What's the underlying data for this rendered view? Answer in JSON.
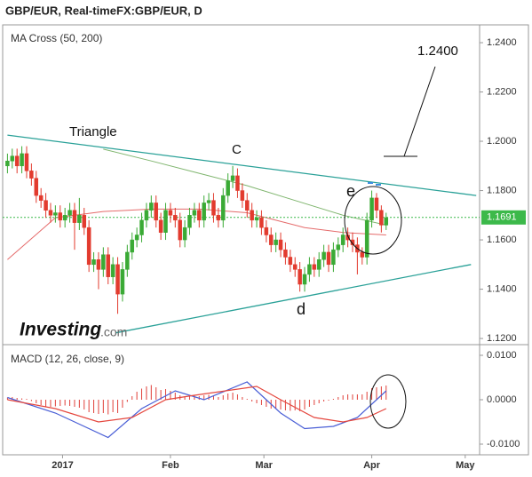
{
  "title": "GBP/EUR, Real-timeFX:GBP/EUR, D",
  "watermark": {
    "brand": "Investing",
    "suffix": ".com"
  },
  "annotations": [
    "Triangle",
    "C",
    "d",
    "e",
    "1.2400"
  ],
  "chart_data": [
    {
      "type": "candlestick",
      "panel_label": "MA Cross (50, 200)",
      "open": [
        1.19,
        1.192,
        1.194,
        1.19,
        1.195,
        1.188,
        1.185,
        1.178,
        1.176,
        1.172,
        1.17,
        1.171,
        1.168,
        1.17,
        1.172,
        1.167,
        1.17,
        1.165,
        1.15,
        1.152,
        1.148,
        1.154,
        1.145,
        1.15,
        1.138,
        1.148,
        1.155,
        1.16,
        1.162,
        1.168,
        1.172,
        1.175,
        1.168,
        1.163,
        1.172,
        1.17,
        1.168,
        1.16,
        1.165,
        1.17,
        1.172,
        1.168,
        1.175,
        1.176,
        1.17,
        1.168,
        1.178,
        1.184,
        1.186,
        1.18,
        1.176,
        1.172,
        1.168,
        1.169,
        1.165,
        1.162,
        1.158,
        1.16,
        1.156,
        1.153,
        1.15,
        1.148,
        1.142,
        1.146,
        1.15,
        1.148,
        1.152,
        1.155,
        1.15,
        1.156,
        1.158,
        1.162,
        1.16,
        1.158,
        1.155,
        1.153,
        1.168,
        1.177,
        1.172,
        1.166
      ],
      "high": [
        1.195,
        1.197,
        1.197,
        1.198,
        1.198,
        1.191,
        1.188,
        1.181,
        1.179,
        1.175,
        1.174,
        1.174,
        1.173,
        1.175,
        1.175,
        1.177,
        1.173,
        1.168,
        1.155,
        1.155,
        1.157,
        1.157,
        1.153,
        1.153,
        1.151,
        1.158,
        1.163,
        1.165,
        1.171,
        1.175,
        1.178,
        1.178,
        1.171,
        1.175,
        1.175,
        1.173,
        1.171,
        1.168,
        1.173,
        1.175,
        1.175,
        1.178,
        1.179,
        1.179,
        1.173,
        1.181,
        1.187,
        1.19,
        1.189,
        1.183,
        1.179,
        1.175,
        1.172,
        1.172,
        1.168,
        1.165,
        1.163,
        1.163,
        1.159,
        1.156,
        1.153,
        1.151,
        1.149,
        1.153,
        1.153,
        1.155,
        1.158,
        1.158,
        1.159,
        1.161,
        1.165,
        1.165,
        1.163,
        1.161,
        1.157,
        1.171,
        1.18,
        1.179,
        1.174,
        1.171
      ],
      "low": [
        1.187,
        1.189,
        1.187,
        1.187,
        1.185,
        1.182,
        1.175,
        1.173,
        1.169,
        1.167,
        1.167,
        1.165,
        1.165,
        1.167,
        1.156,
        1.164,
        1.162,
        1.147,
        1.147,
        1.14,
        1.145,
        1.142,
        1.142,
        1.13,
        1.135,
        1.145,
        1.152,
        1.157,
        1.159,
        1.165,
        1.169,
        1.165,
        1.16,
        1.16,
        1.167,
        1.165,
        1.157,
        1.157,
        1.162,
        1.167,
        1.165,
        1.165,
        1.172,
        1.167,
        1.165,
        1.165,
        1.175,
        1.181,
        1.177,
        1.173,
        1.169,
        1.165,
        1.165,
        1.162,
        1.159,
        1.155,
        1.155,
        1.153,
        1.15,
        1.147,
        1.145,
        1.139,
        1.139,
        1.143,
        1.145,
        1.145,
        1.149,
        1.147,
        1.147,
        1.153,
        1.155,
        1.157,
        1.155,
        1.146,
        1.15,
        1.15,
        1.165,
        1.169,
        1.163,
        1.164
      ],
      "close": [
        1.192,
        1.194,
        1.19,
        1.195,
        1.188,
        1.185,
        1.178,
        1.176,
        1.172,
        1.17,
        1.171,
        1.168,
        1.17,
        1.172,
        1.167,
        1.17,
        1.165,
        1.15,
        1.152,
        1.148,
        1.154,
        1.145,
        1.15,
        1.138,
        1.148,
        1.155,
        1.16,
        1.162,
        1.168,
        1.172,
        1.175,
        1.168,
        1.163,
        1.172,
        1.17,
        1.168,
        1.16,
        1.165,
        1.17,
        1.172,
        1.168,
        1.175,
        1.176,
        1.17,
        1.168,
        1.178,
        1.184,
        1.186,
        1.18,
        1.176,
        1.172,
        1.168,
        1.169,
        1.165,
        1.162,
        1.158,
        1.16,
        1.156,
        1.153,
        1.15,
        1.148,
        1.142,
        1.146,
        1.15,
        1.148,
        1.152,
        1.155,
        1.15,
        1.156,
        1.158,
        1.162,
        1.16,
        1.158,
        1.155,
        1.153,
        1.168,
        1.177,
        1.172,
        1.166,
        1.169
      ],
      "up_color": "#3aaa35",
      "down_color": "#e23b2e",
      "overlays": [
        {
          "color": "#e56b6b",
          "x": [
            0,
            10,
            20,
            30,
            40,
            50,
            56,
            62,
            70,
            79
          ],
          "values": [
            1.152,
            1.169,
            1.1715,
            1.1725,
            1.1725,
            1.171,
            1.168,
            1.165,
            1.163,
            1.162
          ]
        },
        {
          "color": "#7fb56e",
          "x": [
            20,
            30,
            40,
            50,
            60,
            70,
            79
          ],
          "values": [
            1.1968,
            1.192,
            1.187,
            1.182,
            1.176,
            1.17,
            1.166
          ]
        }
      ],
      "trendlines": [
        {
          "color": "#2aa198",
          "x": [
            0,
            97.8
          ],
          "values": [
            1.2025,
            1.178
          ]
        },
        {
          "color": "#2aa198",
          "x": [
            22.6,
            96.7
          ],
          "values": [
            1.1223,
            1.15
          ]
        }
      ],
      "last_price": {
        "value": 1.1691,
        "label": "1.1691",
        "color": "#3cb94a"
      },
      "xlim": [
        -1,
        98.5
      ],
      "ylim": [
        1.1175,
        1.2465
      ],
      "yticks": [
        {
          "value": 1.12,
          "label": "1.1200"
        },
        {
          "value": 1.14,
          "label": "1.1400"
        },
        {
          "value": 1.16,
          "label": "1.1600"
        },
        {
          "value": 1.18,
          "label": "1.1800"
        },
        {
          "value": 1.2,
          "label": "1.2000"
        },
        {
          "value": 1.22,
          "label": "1.2200"
        },
        {
          "value": 1.24,
          "label": "1.2400"
        }
      ]
    },
    {
      "type": "macd",
      "panel_label": "MACD (12, 26, close, 9)",
      "histogram": {
        "color": "#e0403a",
        "values": [
          0.0005,
          0.0006,
          0.0004,
          0.0003,
          0.0002,
          -0.0003,
          -0.0008,
          -0.0012,
          -0.0015,
          -0.0016,
          -0.0015,
          -0.0014,
          -0.0013,
          -0.0014,
          -0.0016,
          -0.0018,
          -0.0022,
          -0.0028,
          -0.003,
          -0.0032,
          -0.003,
          -0.0033,
          -0.0028,
          -0.003,
          -0.0018,
          -0.0005,
          0.0008,
          0.0018,
          0.0025,
          0.003,
          0.0033,
          0.0028,
          0.0022,
          0.0024,
          0.002,
          0.0016,
          0.001,
          0.0008,
          0.0009,
          0.001,
          0.0008,
          0.001,
          0.0011,
          0.0008,
          0.0006,
          0.001,
          0.0014,
          0.0016,
          0.0012,
          0.0006,
          0.0002,
          -0.0004,
          -0.0008,
          -0.0012,
          -0.0016,
          -0.002,
          -0.002,
          -0.0022,
          -0.0024,
          -0.0025,
          -0.0024,
          -0.0026,
          -0.0022,
          -0.0016,
          -0.0012,
          -0.0008,
          -0.0004,
          -0.0002,
          0.0002,
          0.0006,
          0.001,
          0.0012,
          0.0012,
          0.0012,
          0.0012,
          0.0018,
          0.0026,
          0.0028,
          0.003,
          0.0032
        ]
      },
      "lines": [
        {
          "color": "#4a5fd6",
          "x": [
            0,
            10,
            14,
            21,
            28,
            35,
            41,
            50,
            57,
            62,
            68,
            73,
            79
          ],
          "values": [
            0.0005,
            -0.003,
            -0.005,
            -0.0085,
            -0.002,
            0.002,
            0.0,
            0.004,
            -0.003,
            -0.0065,
            -0.006,
            -0.004,
            0.002
          ]
        },
        {
          "color": "#e5483f",
          "x": [
            0,
            10,
            19,
            26,
            33,
            39,
            52,
            57,
            64,
            70,
            75,
            79
          ],
          "values": [
            0.0,
            -0.002,
            -0.005,
            -0.004,
            0.0,
            0.001,
            0.003,
            0.0,
            -0.004,
            -0.005,
            -0.004,
            -0.002
          ]
        }
      ],
      "xlim": [
        -1,
        98.5
      ],
      "xticks": [
        {
          "value": 11.5,
          "label": "2017"
        },
        {
          "value": 34,
          "label": "Feb"
        },
        {
          "value": 53.5,
          "label": "Mar"
        },
        {
          "value": 76,
          "label": "Apr"
        },
        {
          "value": 95.5,
          "label": "May"
        }
      ],
      "ylim": [
        -0.0124,
        0.0124
      ],
      "yticks": [
        {
          "value": -0.01,
          "label": "-0.0100"
        },
        {
          "value": 0,
          "label": "0.0000"
        },
        {
          "value": 0.01,
          "label": "0.0100"
        }
      ]
    }
  ]
}
